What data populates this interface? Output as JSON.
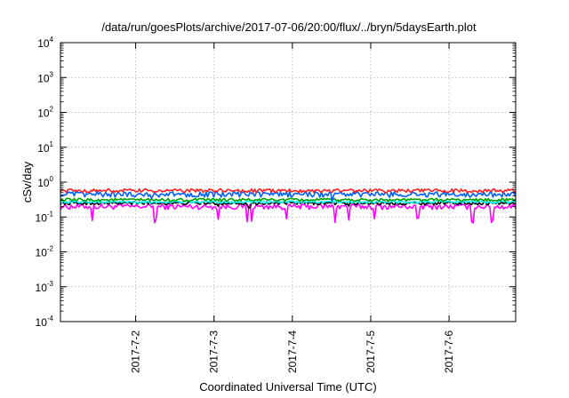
{
  "chart_data": {
    "type": "line",
    "title": "/data/run/goesPlots/archive/2017-07-06/20:00/flux/../bryn/5daysEarth.plot",
    "xlabel": "Coordinated Universal Time (UTC)",
    "ylabel": "cSv/day",
    "yscale": "log",
    "ylim": [
      0.0001,
      10000
    ],
    "xlim_days": [
      1.04,
      6.85
    ],
    "y_ticks": [
      {
        "base": "10",
        "exp": "-4",
        "value": 0.0001
      },
      {
        "base": "10",
        "exp": "-3",
        "value": 0.001
      },
      {
        "base": "10",
        "exp": "-2",
        "value": 0.01
      },
      {
        "base": "10",
        "exp": "-1",
        "value": 0.1
      },
      {
        "base": "10",
        "exp": "0",
        "value": 1
      },
      {
        "base": "10",
        "exp": "1",
        "value": 10
      },
      {
        "base": "10",
        "exp": "2",
        "value": 100
      },
      {
        "base": "10",
        "exp": "3",
        "value": 1000
      },
      {
        "base": "10",
        "exp": "4",
        "value": 10000
      }
    ],
    "x_ticks": [
      {
        "label": "2017-7-2",
        "day": 2
      },
      {
        "label": "2017-7-3",
        "day": 3
      },
      {
        "label": "2017-7-4",
        "day": 4
      },
      {
        "label": "2017-7-5",
        "day": 5
      },
      {
        "label": "2017-7-6",
        "day": 6
      }
    ],
    "grid": true,
    "legend": "none",
    "series": [
      {
        "color": "#ff00ff",
        "baseline": 0.2,
        "noise": 0.18,
        "dips": [
          1.45,
          2.25,
          3.05,
          3.42,
          3.48,
          3.92,
          4.55,
          4.72,
          5.05,
          5.6,
          6.3,
          6.55
        ],
        "dip_factor": 0.4
      },
      {
        "color": "#000000",
        "baseline": 0.25,
        "noise": 0.1,
        "dips": [
          3.05,
          3.45,
          4.72
        ],
        "dip_factor": 0.75
      },
      {
        "color": "#00ffff",
        "baseline": 0.27,
        "noise": 0.08,
        "dips": [],
        "dip_factor": 1
      },
      {
        "color": "#00a000",
        "baseline": 0.31,
        "noise": 0.1,
        "dips": [],
        "dip_factor": 1
      },
      {
        "color": "#0060ff",
        "baseline": 0.45,
        "noise": 0.18,
        "dips": [
          2.2,
          3.1,
          4.5
        ],
        "dip_factor": 0.7
      },
      {
        "color": "#ff2020",
        "baseline": 0.57,
        "noise": 0.12,
        "dips": [],
        "dip_factor": 1
      }
    ]
  }
}
